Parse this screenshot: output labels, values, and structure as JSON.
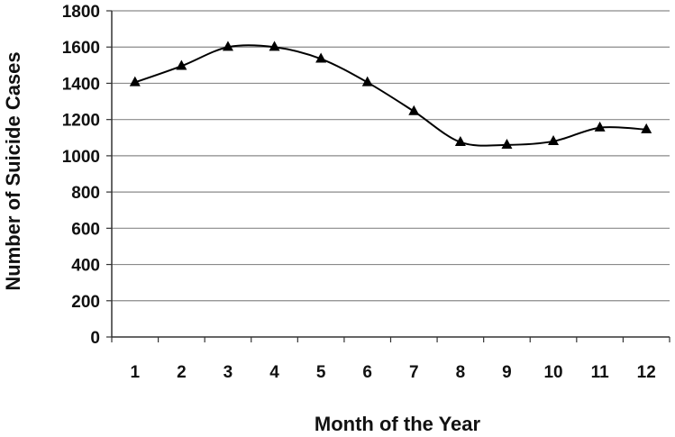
{
  "chart_data": {
    "type": "line",
    "title": "",
    "xlabel": "Month of the Year",
    "ylabel": "Number of Suicide Cases",
    "categories": [
      "1",
      "2",
      "3",
      "4",
      "5",
      "6",
      "7",
      "8",
      "9",
      "10",
      "11",
      "12"
    ],
    "series": [
      {
        "values": [
          1405,
          1495,
          1600,
          1600,
          1535,
          1405,
          1245,
          1075,
          1060,
          1080,
          1155,
          1145
        ],
        "marker": "triangle",
        "color": "#000000"
      }
    ],
    "ylim": [
      0,
      1800
    ],
    "yticks": [
      0,
      200,
      400,
      600,
      800,
      1000,
      1200,
      1400,
      1600,
      1800
    ],
    "grid": "horizontal",
    "legend": "none",
    "smooth": true
  }
}
